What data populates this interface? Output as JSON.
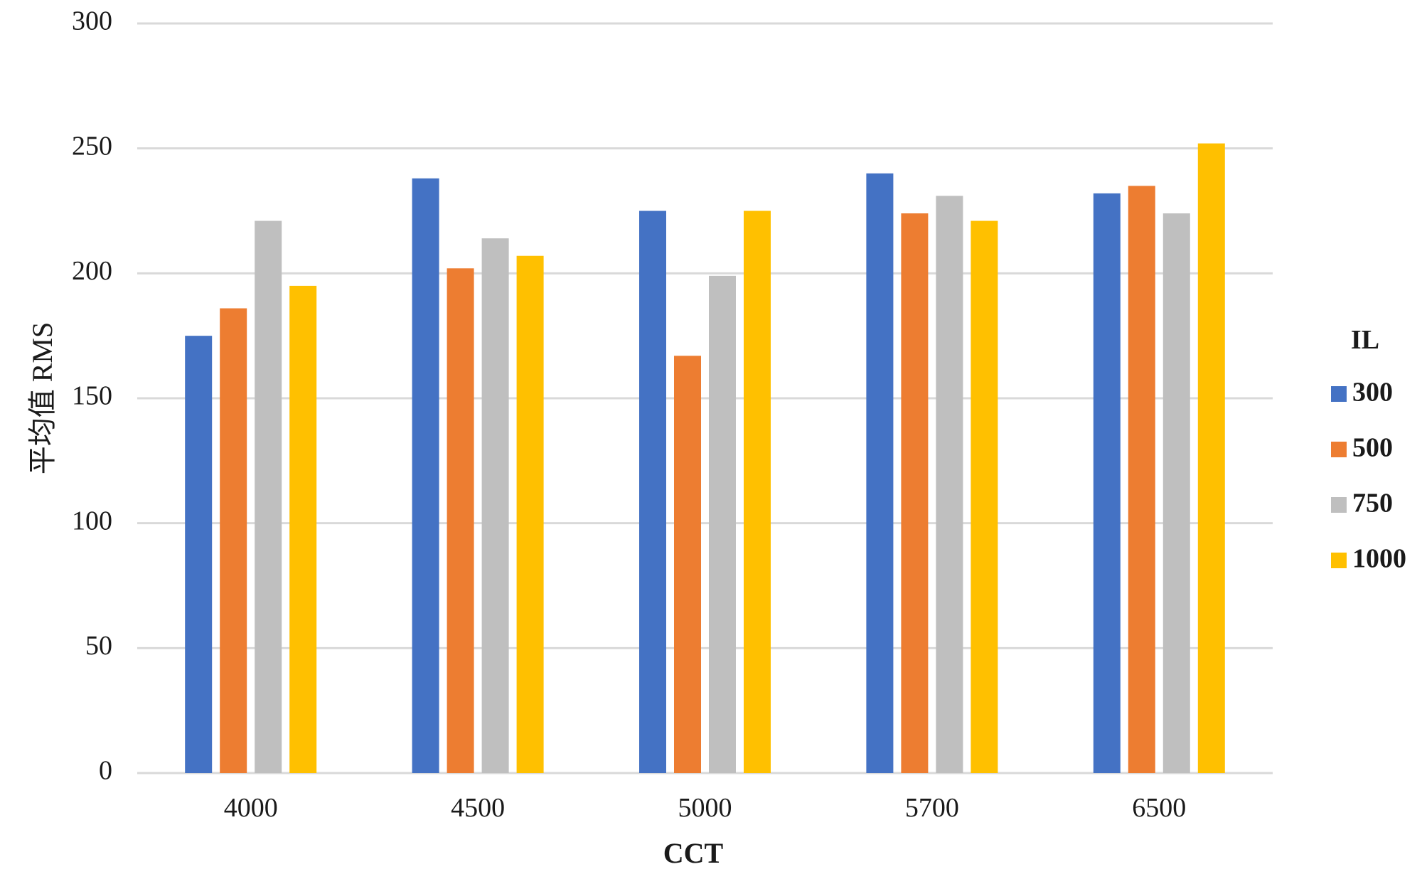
{
  "chart_data": {
    "type": "bar",
    "title": "",
    "xlabel": "CCT",
    "ylabel": "平均值 RMS",
    "ylim": [
      0,
      300
    ],
    "yticks": [
      0,
      50,
      100,
      150,
      200,
      250,
      300
    ],
    "grid": true,
    "legend": {
      "title": "IL",
      "position": "right"
    },
    "categories": [
      "4000",
      "4500",
      "5000",
      "5700",
      "6500"
    ],
    "series": [
      {
        "name": "300",
        "color": "#4472C4",
        "values": [
          175,
          238,
          225,
          240,
          232
        ]
      },
      {
        "name": "500",
        "color": "#ED7D31",
        "values": [
          186,
          202,
          167,
          224,
          235
        ]
      },
      {
        "name": "750",
        "color": "#BFBFBF",
        "values": [
          221,
          214,
          199,
          231,
          224
        ]
      },
      {
        "name": "1000",
        "color": "#FFC000",
        "values": [
          195,
          207,
          225,
          221,
          252
        ]
      }
    ]
  }
}
